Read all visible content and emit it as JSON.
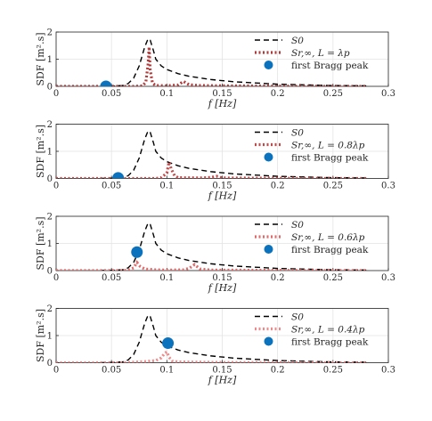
{
  "chart_data": [
    {
      "type": "line",
      "xlabel": "f [Hz]",
      "ylabel": "SDF [m².s]",
      "xlim": [
        0,
        0.3
      ],
      "ylim": [
        0,
        2
      ],
      "xticks": [
        "0",
        "0.05",
        "0.1",
        "0.15",
        "0.2",
        "0.25",
        "0.3"
      ],
      "yticks": [
        "0",
        "1",
        "2"
      ],
      "grid": true,
      "legend_position": "top-right",
      "legend": [
        "S0",
        "Sr,∞, L = λp",
        "first Bragg peak"
      ],
      "series": [
        {
          "name": "S0",
          "style": "dashed",
          "color": "#000000",
          "x": [
            0.04,
            0.05,
            0.06,
            0.065,
            0.07,
            0.075,
            0.08,
            0.083,
            0.085,
            0.088,
            0.09,
            0.095,
            0.1,
            0.11,
            0.12,
            0.14,
            0.16,
            0.2,
            0.25,
            0.28
          ],
          "y": [
            0,
            0.01,
            0.03,
            0.1,
            0.3,
            0.75,
            1.45,
            1.75,
            1.7,
            1.3,
            1.0,
            0.75,
            0.62,
            0.47,
            0.37,
            0.25,
            0.17,
            0.08,
            0.03,
            0.02
          ]
        },
        {
          "name": "Sr,∞",
          "style": "dotted",
          "color": "#b33a3a",
          "x": [
            0,
            0.07,
            0.078,
            0.081,
            0.083,
            0.084,
            0.085,
            0.087,
            0.09,
            0.1,
            0.11,
            0.115,
            0.12,
            0.13,
            0.15,
            0.2,
            0.25,
            0.28
          ],
          "y": [
            0,
            0,
            0.02,
            0.15,
            0.8,
            1.45,
            0.6,
            0.12,
            0.03,
            0.02,
            0.05,
            0.18,
            0.06,
            0.03,
            0.02,
            0.01,
            0,
            0
          ]
        },
        {
          "name": "first Bragg peak",
          "style": "marker",
          "color": "#0b72bd",
          "x": [
            0.045
          ],
          "y": [
            0
          ]
        }
      ]
    },
    {
      "type": "line",
      "xlabel": "f [Hz]",
      "ylabel": "SDF [m².s]",
      "xlim": [
        0,
        0.3
      ],
      "ylim": [
        0,
        2
      ],
      "xticks": [
        "0",
        "0.05",
        "0.1",
        "0.15",
        "0.2",
        "0.25",
        "0.3"
      ],
      "yticks": [
        "0",
        "1",
        "2"
      ],
      "grid": true,
      "legend_position": "top-right",
      "legend": [
        "S0",
        "Sr,∞, L = 0.8λp",
        "first Bragg peak"
      ],
      "series": [
        {
          "name": "S0",
          "style": "dashed",
          "color": "#000000",
          "x": [
            0.04,
            0.05,
            0.06,
            0.065,
            0.07,
            0.075,
            0.08,
            0.083,
            0.085,
            0.088,
            0.09,
            0.095,
            0.1,
            0.11,
            0.12,
            0.14,
            0.16,
            0.2,
            0.25,
            0.28
          ],
          "y": [
            0,
            0.01,
            0.03,
            0.1,
            0.3,
            0.75,
            1.45,
            1.75,
            1.7,
            1.3,
            1.0,
            0.75,
            0.62,
            0.47,
            0.37,
            0.25,
            0.17,
            0.08,
            0.03,
            0.02
          ]
        },
        {
          "name": "Sr,∞",
          "style": "dotted",
          "color": "#c24a4a",
          "x": [
            0,
            0.09,
            0.095,
            0.1,
            0.102,
            0.104,
            0.107,
            0.11,
            0.13,
            0.14,
            0.145,
            0.15,
            0.2,
            0.25,
            0.28
          ],
          "y": [
            0,
            0,
            0.03,
            0.2,
            0.6,
            0.35,
            0.1,
            0.03,
            0.02,
            0.04,
            0.08,
            0.02,
            0.01,
            0,
            0
          ]
        },
        {
          "name": "first Bragg peak",
          "style": "marker",
          "color": "#0b72bd",
          "x": [
            0.056
          ],
          "y": [
            0.02
          ]
        }
      ]
    },
    {
      "type": "line",
      "xlabel": "f [Hz]",
      "ylabel": "SDF [m².s]",
      "xlim": [
        0,
        0.3
      ],
      "ylim": [
        0,
        2
      ],
      "xticks": [
        "0",
        "0.05",
        "0.1",
        "0.15",
        "0.2",
        "0.25",
        "0.3"
      ],
      "yticks": [
        "0",
        "1",
        "2"
      ],
      "grid": true,
      "legend_position": "top-right",
      "legend": [
        "S0",
        "Sr,∞, L = 0.6λp",
        "first Bragg peak"
      ],
      "series": [
        {
          "name": "S0",
          "style": "dashed",
          "color": "#000000",
          "x": [
            0.04,
            0.05,
            0.06,
            0.065,
            0.07,
            0.075,
            0.08,
            0.083,
            0.085,
            0.088,
            0.09,
            0.095,
            0.1,
            0.11,
            0.12,
            0.14,
            0.16,
            0.2,
            0.25,
            0.28
          ],
          "y": [
            0,
            0.01,
            0.03,
            0.1,
            0.3,
            0.75,
            1.45,
            1.75,
            1.7,
            1.3,
            1.0,
            0.75,
            0.62,
            0.47,
            0.37,
            0.25,
            0.17,
            0.08,
            0.03,
            0.02
          ]
        },
        {
          "name": "Sr,∞",
          "style": "dotted",
          "color": "#e06a6a",
          "x": [
            0,
            0.06,
            0.065,
            0.07,
            0.073,
            0.076,
            0.08,
            0.09,
            0.1,
            0.115,
            0.12,
            0.125,
            0.13,
            0.14,
            0.2,
            0.25,
            0.28
          ],
          "y": [
            0,
            0,
            0.02,
            0.1,
            0.3,
            0.15,
            0.06,
            0.03,
            0.02,
            0.03,
            0.08,
            0.22,
            0.06,
            0.02,
            0.01,
            0,
            0
          ]
        },
        {
          "name": "first Bragg peak",
          "style": "marker",
          "color": "#0b72bd",
          "x": [
            0.073
          ],
          "y": [
            0.68
          ]
        }
      ]
    },
    {
      "type": "line",
      "xlabel": "f [Hz]",
      "ylabel": "SDF [m².s]",
      "xlim": [
        0,
        0.3
      ],
      "ylim": [
        0,
        2
      ],
      "xticks": [
        "0",
        "0.05",
        "0.1",
        "0.15",
        "0.2",
        "0.25",
        "0.3"
      ],
      "yticks": [
        "0",
        "1",
        "2"
      ],
      "grid": true,
      "legend_position": "top-right",
      "legend": [
        "S0",
        "Sr,∞, L = 0.4λp",
        "first Bragg peak"
      ],
      "series": [
        {
          "name": "S0",
          "style": "dashed",
          "color": "#000000",
          "x": [
            0.04,
            0.05,
            0.06,
            0.065,
            0.07,
            0.075,
            0.08,
            0.083,
            0.085,
            0.088,
            0.09,
            0.095,
            0.1,
            0.11,
            0.12,
            0.14,
            0.16,
            0.2,
            0.25,
            0.28
          ],
          "y": [
            0,
            0.01,
            0.03,
            0.1,
            0.3,
            0.75,
            1.45,
            1.75,
            1.7,
            1.3,
            1.0,
            0.75,
            0.62,
            0.47,
            0.37,
            0.25,
            0.17,
            0.08,
            0.03,
            0.02
          ]
        },
        {
          "name": "Sr,∞",
          "style": "dotted",
          "color": "#f08a8a",
          "x": [
            0,
            0.06,
            0.07,
            0.08,
            0.09,
            0.095,
            0.098,
            0.1,
            0.102,
            0.105,
            0.11,
            0.15,
            0.2,
            0.25,
            0.28
          ],
          "y": [
            0,
            0,
            0.02,
            0.04,
            0.08,
            0.18,
            0.35,
            0.4,
            0.2,
            0.06,
            0.03,
            0.01,
            0.01,
            0,
            0
          ]
        },
        {
          "name": "first Bragg peak",
          "style": "marker",
          "color": "#0b72bd",
          "x": [
            0.101
          ],
          "y": [
            0.72
          ]
        }
      ]
    }
  ]
}
